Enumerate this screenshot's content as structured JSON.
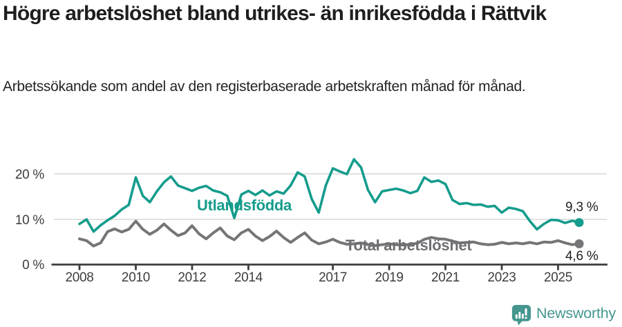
{
  "header": {
    "title": "Högre arbetslöshet bland utrikes- än inrikesfödda i Rättvik",
    "subtitle": "Arbetssökande som andel av den registerbaserade arbetskraften månad för månad."
  },
  "chart": {
    "y_ticks": [
      "20 %",
      "10 %",
      "0 %"
    ],
    "x_ticks": [
      "2008",
      "2010",
      "2012",
      "2014",
      "2017",
      "2019",
      "2021",
      "2023",
      "2025"
    ],
    "series_labels": {
      "foreign": "Utlandsfödda",
      "total": "Total arbetslöshet"
    },
    "end_labels": {
      "foreign": "9,3 %",
      "total": "4,6 %"
    }
  },
  "chart_data": {
    "type": "line",
    "title": "Högre arbetslöshet bland utrikes- än inrikesfödda i Rättvik",
    "subtitle": "Arbetssökande som andel av den registerbaserade arbetskraften månad för månad.",
    "unit": "%",
    "x_start_year": 2008,
    "x_step_years": 0.25,
    "x_end_year": 2025.75,
    "x_tick_years": [
      2008,
      2010,
      2012,
      2014,
      2017,
      2019,
      2021,
      2023,
      2025
    ],
    "ylim": [
      0,
      24
    ],
    "yticks": [
      0,
      10,
      20
    ],
    "grid": "horizontal",
    "legend_position": "inline-labels",
    "series": [
      {
        "name": "Total arbetslöshet",
        "color": "#757578",
        "end_value": 4.6,
        "end_label": "4,6 %",
        "values": [
          5.7,
          5.3,
          4.1,
          4.8,
          7.3,
          7.9,
          7.2,
          7.8,
          9.6,
          7.8,
          6.7,
          7.6,
          9.0,
          7.6,
          6.4,
          7.0,
          8.6,
          6.8,
          5.7,
          7.0,
          8.1,
          6.3,
          5.5,
          7.0,
          7.8,
          6.3,
          5.3,
          6.2,
          7.4,
          6.0,
          4.9,
          6.0,
          7.0,
          5.4,
          4.6,
          5.0,
          5.6,
          4.9,
          4.5,
          4.6,
          4.8,
          4.4,
          4.2,
          4.4,
          4.6,
          4.4,
          4.3,
          4.5,
          4.7,
          5.6,
          6.0,
          5.7,
          5.6,
          5.2,
          4.8,
          4.9,
          5.0,
          4.6,
          4.4,
          4.5,
          4.9,
          4.6,
          4.8,
          4.6,
          4.9,
          4.6,
          5.0,
          4.9,
          5.3,
          4.8,
          4.4,
          4.6
        ]
      },
      {
        "name": "Utlandsfödda",
        "color": "#149c8c",
        "end_value": 9.3,
        "end_label": "9,3 %",
        "values": [
          9.0,
          10.0,
          7.3,
          8.7,
          9.8,
          10.8,
          12.2,
          13.2,
          19.3,
          15.2,
          13.8,
          16.2,
          18.2,
          19.5,
          17.5,
          16.9,
          16.3,
          17.0,
          17.4,
          16.4,
          16.0,
          15.2,
          10.3,
          15.5,
          16.3,
          15.4,
          16.4,
          15.3,
          16.2,
          15.7,
          17.5,
          20.4,
          19.5,
          14.5,
          11.5,
          17.5,
          21.3,
          20.6,
          20.0,
          23.3,
          21.5,
          16.5,
          13.8,
          16.2,
          16.5,
          16.8,
          16.4,
          15.8,
          16.3,
          19.3,
          18.3,
          18.6,
          17.8,
          14.3,
          13.4,
          13.6,
          13.2,
          13.3,
          12.8,
          13.0,
          11.5,
          12.6,
          12.3,
          11.8,
          9.6,
          7.8,
          9.0,
          9.9,
          9.8,
          9.2,
          9.7,
          9.3
        ]
      }
    ]
  },
  "footer": {
    "brand": "Newsworthy"
  }
}
